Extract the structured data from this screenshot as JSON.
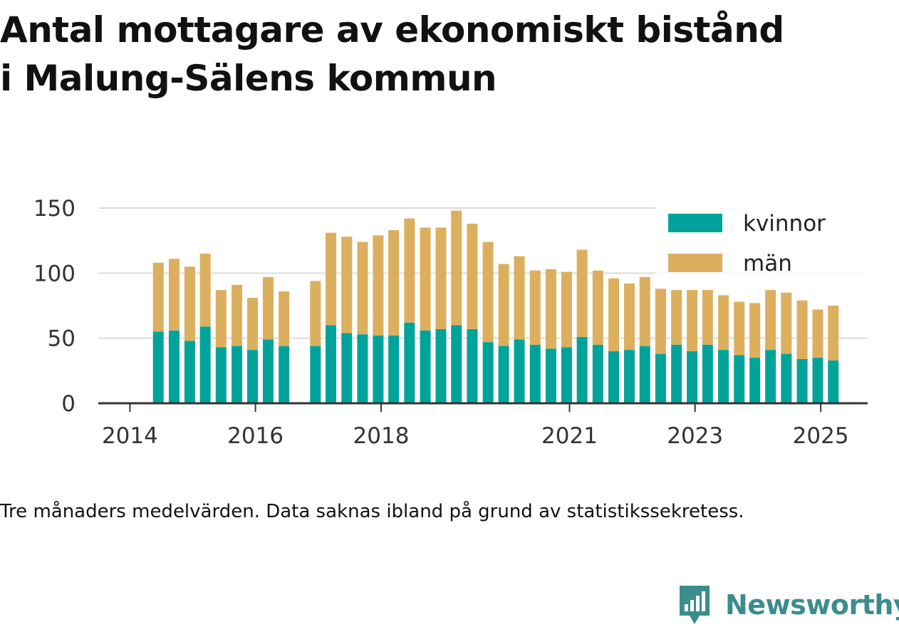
{
  "title_lines": [
    "Antal mottagare av ekonomiskt bistånd",
    "i Malung-Sälens kommun"
  ],
  "footnote": "Tre månaders medelvärden. Data saknas ibland på grund av statistikssekretess.",
  "brand": {
    "name": "Newsworthy",
    "icon": "newsworthy-logo-icon",
    "color": "#3b8d8c"
  },
  "colors": {
    "kvinnor": "#00a39a",
    "man": "#dcaf5e",
    "grid": "#dddddd",
    "axis": "#333333"
  },
  "chart_data": {
    "type": "bar",
    "stacked": true,
    "title": "Antal mottagare av ekonomiskt bistånd i Malung-Sälens kommun",
    "xlabel": "",
    "ylabel": "",
    "ylim": [
      0,
      150
    ],
    "y_ticks": [
      0,
      50,
      100,
      150
    ],
    "x_ticks": [
      "2014",
      "2016",
      "2018",
      "2021",
      "2023",
      "2025"
    ],
    "legend_position": "top-right",
    "x": [
      "2014-06",
      "2014-09",
      "2014-12",
      "2015-03",
      "2015-06",
      "2015-09",
      "2015-12",
      "2016-03",
      "2016-06",
      "2016-12",
      "2017-03",
      "2017-06",
      "2017-09",
      "2017-12",
      "2018-03",
      "2018-06",
      "2018-09",
      "2018-12",
      "2019-03",
      "2019-06",
      "2019-09",
      "2019-12",
      "2020-03",
      "2020-06",
      "2020-09",
      "2020-12",
      "2021-03",
      "2021-06",
      "2021-09",
      "2021-12",
      "2022-03",
      "2022-06",
      "2022-09",
      "2022-12",
      "2023-03",
      "2023-06",
      "2023-09",
      "2023-12",
      "2024-03",
      "2024-06",
      "2024-09",
      "2024-12",
      "2025-03"
    ],
    "series": [
      {
        "name": "kvinnor",
        "color": "#00a39a",
        "values": [
          55,
          56,
          48,
          59,
          43,
          44,
          41,
          49,
          44,
          44,
          60,
          54,
          53,
          52,
          52,
          62,
          56,
          57,
          60,
          57,
          47,
          44,
          49,
          45,
          42,
          43,
          51,
          45,
          40,
          41,
          44,
          38,
          45,
          40,
          45,
          41,
          37,
          35,
          41,
          38,
          34,
          35,
          33
        ]
      },
      {
        "name": "män",
        "color": "#dcaf5e",
        "values": [
          53,
          55,
          57,
          56,
          44,
          47,
          40,
          48,
          42,
          50,
          71,
          74,
          71,
          77,
          81,
          80,
          79,
          78,
          88,
          81,
          77,
          63,
          64,
          57,
          61,
          58,
          67,
          57,
          56,
          51,
          53,
          50,
          42,
          47,
          42,
          42,
          41,
          42,
          46,
          47,
          45,
          37,
          42
        ]
      }
    ]
  }
}
